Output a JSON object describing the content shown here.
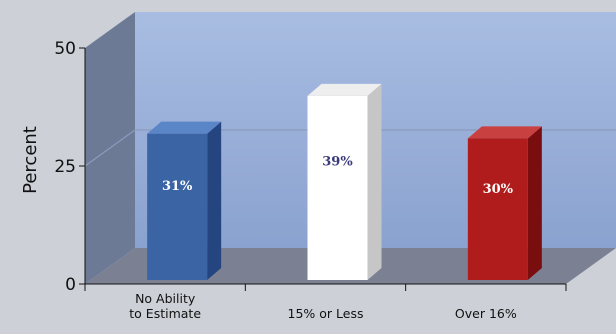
{
  "chart_data": {
    "type": "bar",
    "categories": [
      "No Ability to Estimate",
      "15% or Less",
      "Over 16%"
    ],
    "category_label_lines": [
      [
        "No Ability",
        "to Estimate"
      ],
      [
        "15% or Less"
      ],
      [
        "Over 16%"
      ]
    ],
    "values": [
      31,
      39,
      30
    ],
    "data_labels": [
      "31%",
      "39%",
      "30%"
    ],
    "ylabel": "Percent",
    "ylim": [
      0,
      50
    ],
    "yticks": [
      "0",
      "25",
      "50"
    ],
    "grid": true,
    "bar_colors": [
      {
        "front": "#3b64a4",
        "side": "#24457f",
        "top": "#5a85c6",
        "label": "#ffffff"
      },
      {
        "front": "#ffffff",
        "side": "#c6c6c6",
        "top": "#eeeeee",
        "label": "#3a3a7a"
      },
      {
        "front": "#b01c1c",
        "side": "#7a0d0d",
        "top": "#c94040",
        "label": "#ffffff"
      }
    ],
    "colors": {
      "back_wall_top": "#a9bde2",
      "back_wall_bottom": "#8aa2cf",
      "side_wall": "#6c7a96",
      "floor": "#7b8193",
      "gridline": "#8a9bbd",
      "axis": "#111111"
    }
  }
}
